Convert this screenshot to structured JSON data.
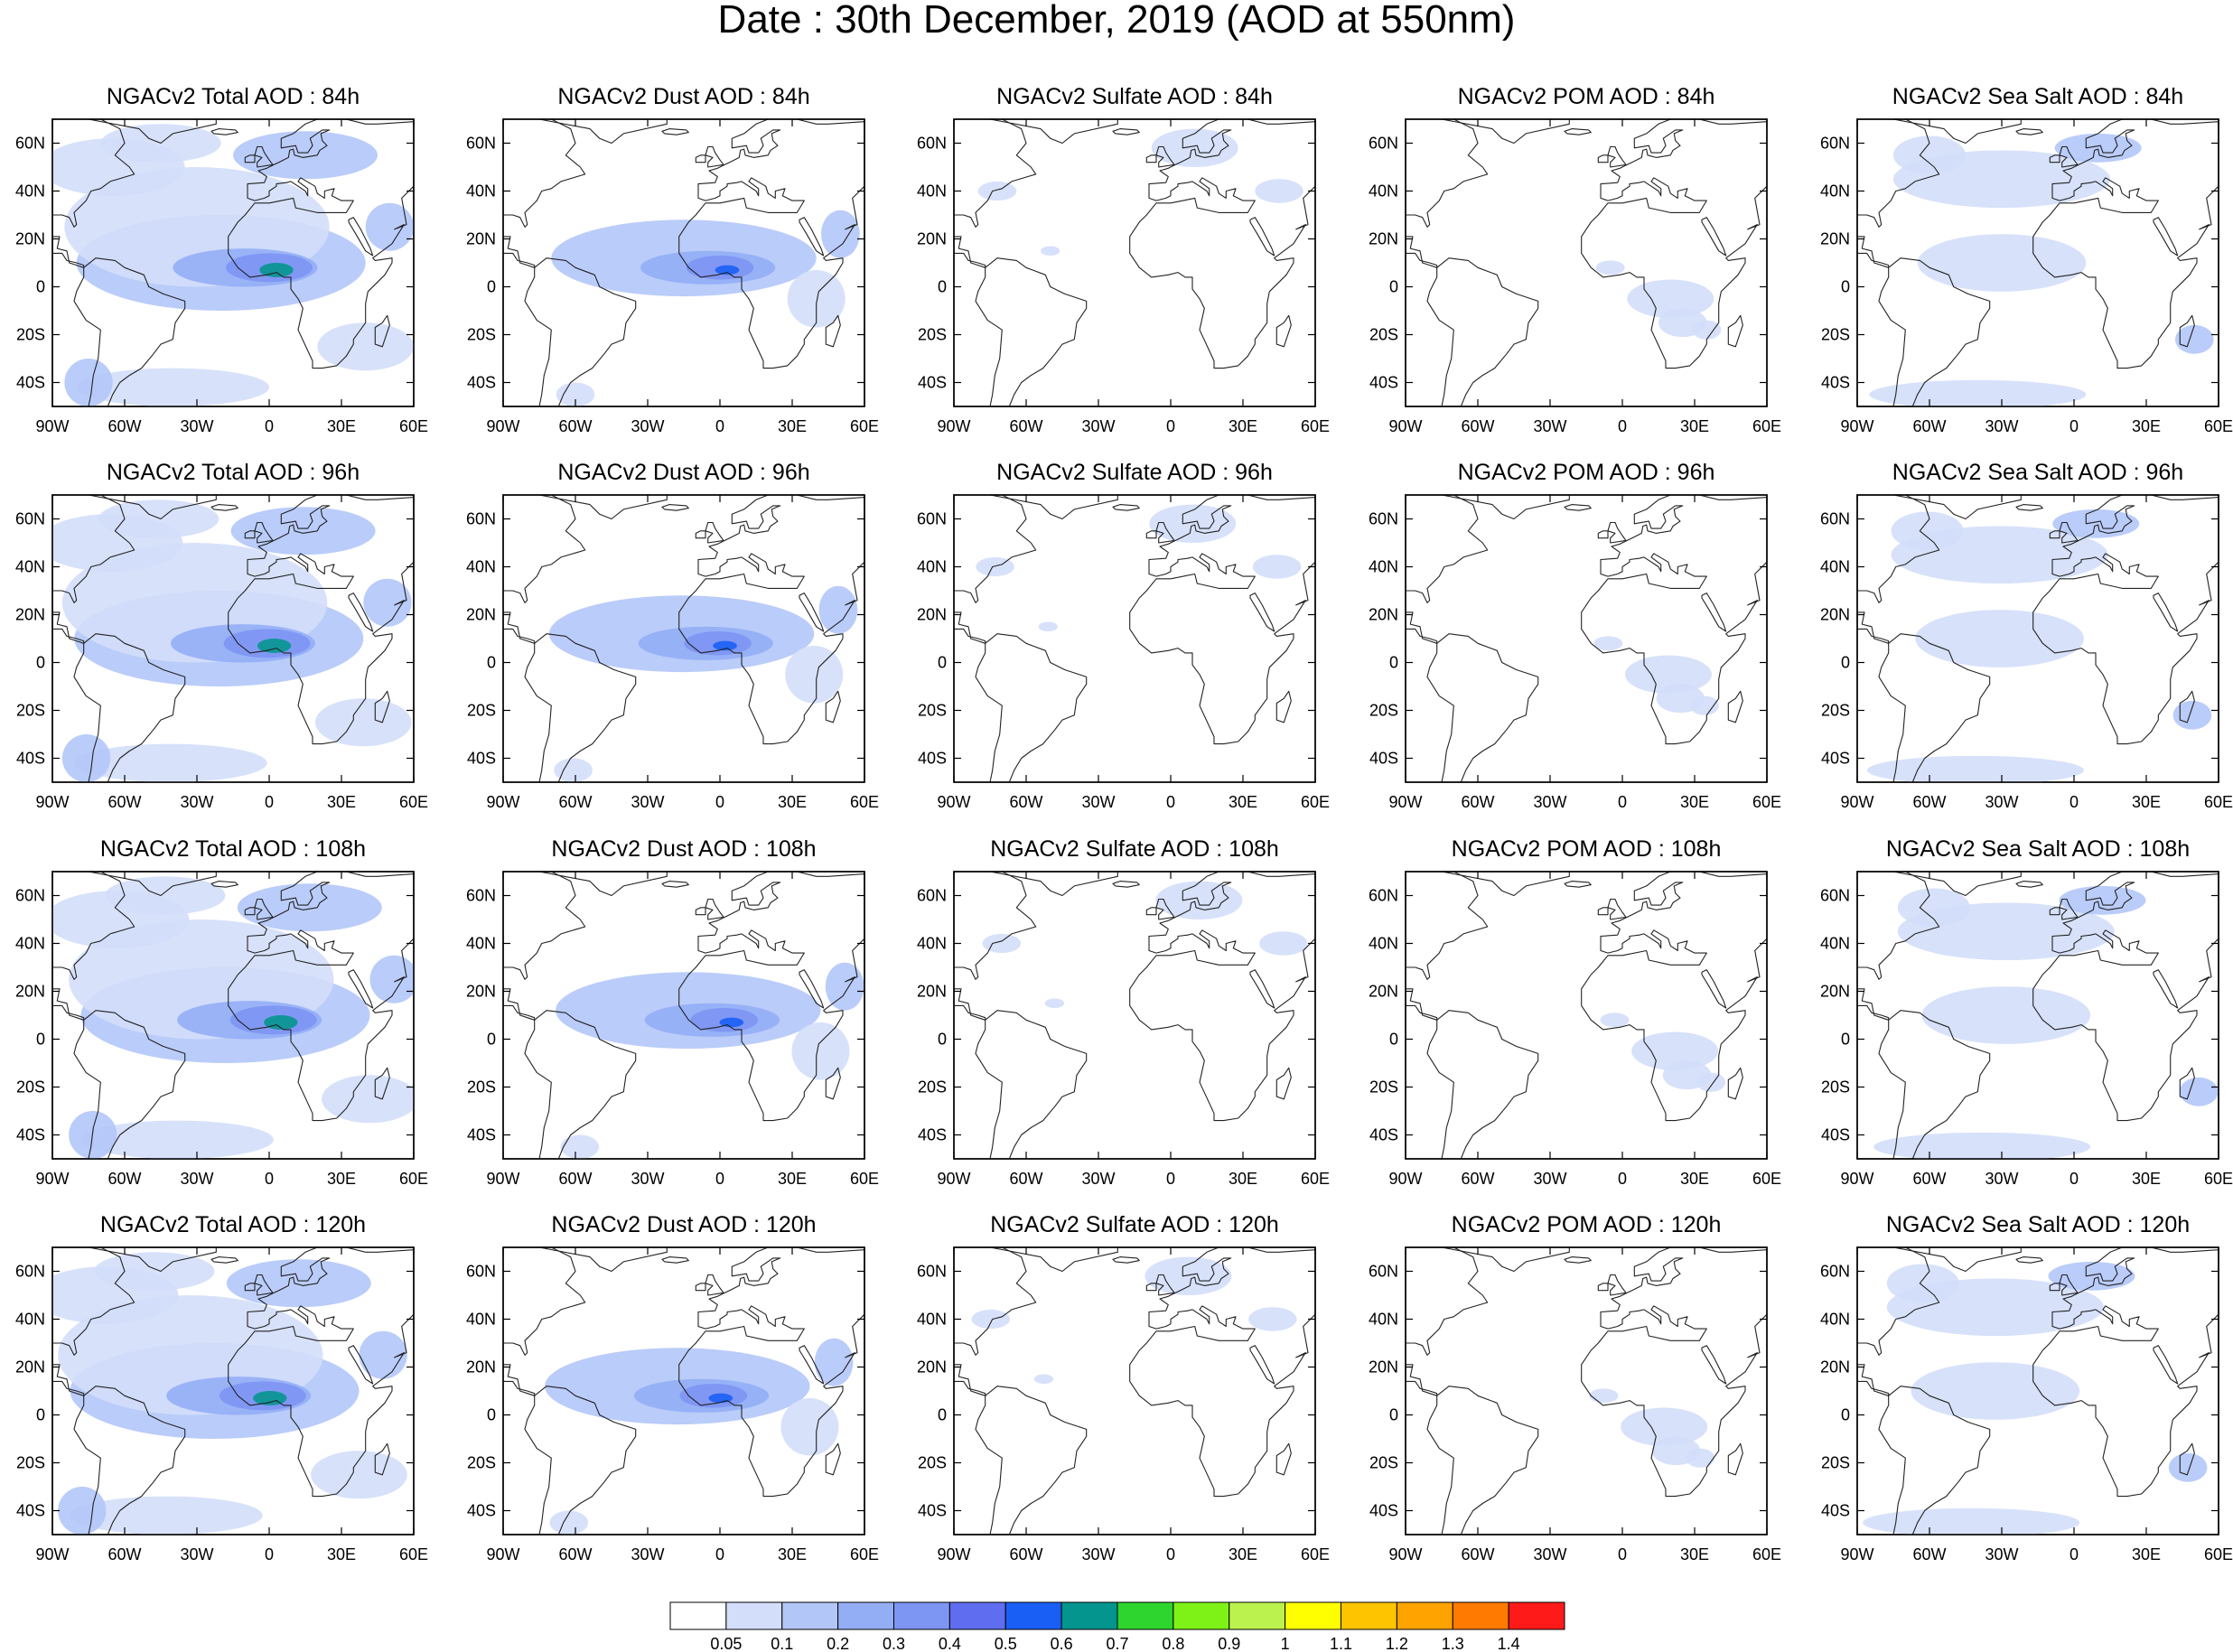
{
  "title": "Date : 30th December, 2019 (AOD at 550nm)",
  "rows": [
    {
      "panels": [
        "NGACv2 Total AOD : 84h",
        "NGACv2 Dust AOD : 84h",
        "NGACv2 Sulfate AOD : 84h",
        "NGACv2 POM AOD : 84h",
        "NGACv2 Sea Salt AOD : 84h"
      ]
    },
    {
      "panels": [
        "NGACv2 Total AOD : 96h",
        "NGACv2 Dust AOD : 96h",
        "NGACv2 Sulfate AOD : 96h",
        "NGACv2 POM AOD : 96h",
        "NGACv2 Sea Salt AOD : 96h"
      ]
    },
    {
      "panels": [
        "NGACv2 Total AOD : 108h",
        "NGACv2 Dust AOD : 108h",
        "NGACv2 Sulfate AOD : 108h",
        "NGACv2 POM AOD : 108h",
        "NGACv2 Sea Salt AOD : 108h"
      ]
    },
    {
      "panels": [
        "NGACv2 Total AOD : 120h",
        "NGACv2 Dust AOD : 120h",
        "NGACv2 Sulfate AOD : 120h",
        "NGACv2 POM AOD : 120h",
        "NGACv2 Sea Salt  AOD : 120h"
      ]
    }
  ],
  "lat_labels": [
    "60N",
    "40N",
    "20N",
    "0",
    "20S",
    "40S"
  ],
  "lon_labels": [
    "90W",
    "60W",
    "30W",
    "0",
    "30E",
    "60E"
  ],
  "colorbar": {
    "colors": [
      "#ffffff",
      "#d3defa",
      "#b3c6f8",
      "#94aef6",
      "#7d95f3",
      "#5f6ef0",
      "#1a5ff5",
      "#04958f",
      "#2ed52e",
      "#7ef217",
      "#bbf24d",
      "#ffff00",
      "#ffc400",
      "#ffa300",
      "#ff7a00",
      "#ff1a1a"
    ],
    "labels": [
      "0.05",
      "0.1",
      "0.2",
      "0.3",
      "0.4",
      "0.5",
      "0.6",
      "0.7",
      "0.8",
      "0.9",
      "1",
      "1.1",
      "1.2",
      "1.3",
      "1.4"
    ]
  },
  "colors": {
    "frame": "#000000",
    "coast": "#222222"
  }
}
